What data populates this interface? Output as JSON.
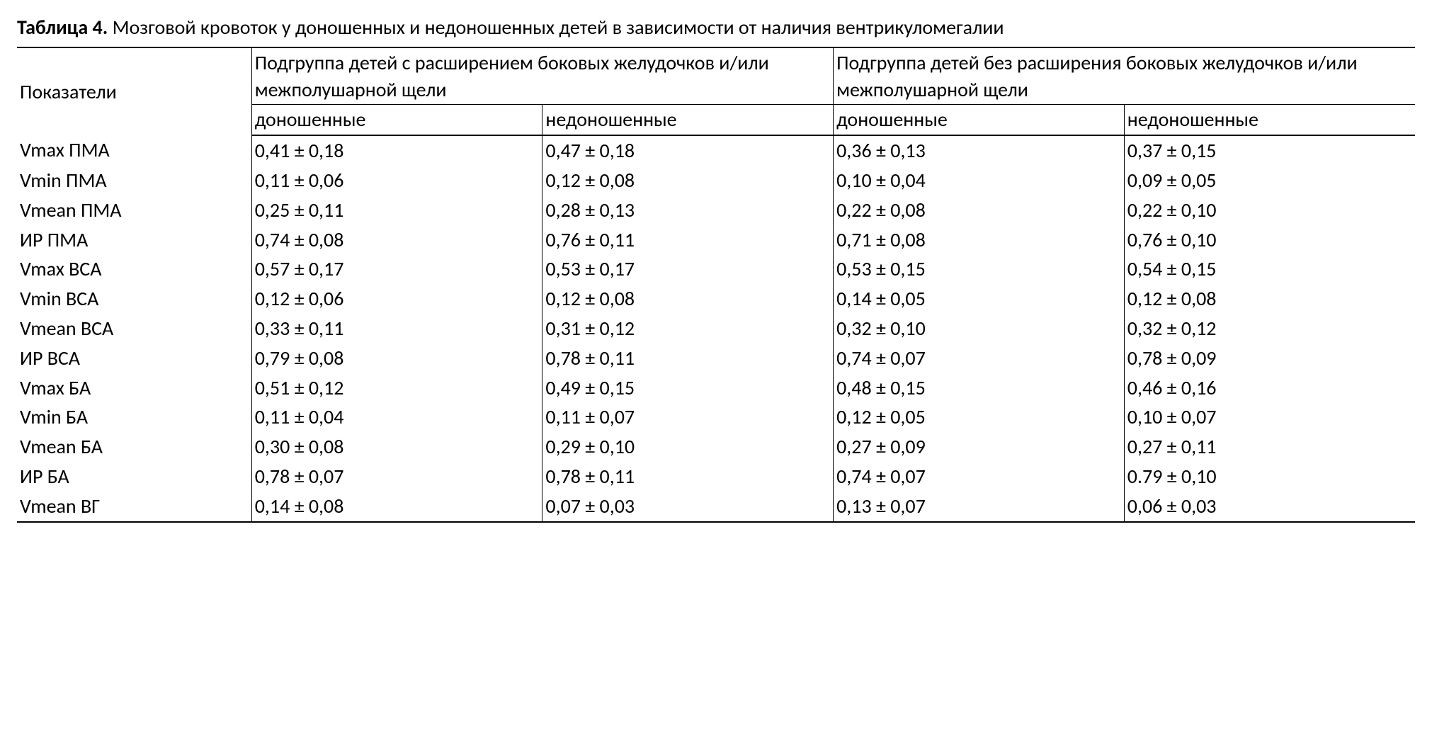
{
  "caption": {
    "label": "Таблица 4.",
    "text": "Мозговой кровоток у доношенных и недоношенных детей в зависимости от наличия вентрикуломегалии"
  },
  "headers": {
    "col0": "Показатели",
    "group1": "Подгруппа детей с расширением боковых желудочков и/или межполушарной щели",
    "group2": "Подгруппа детей без расширения боковых желудочков и/или межполушарной щели",
    "sub_term": "доношенные",
    "sub_preterm": "недоношенные"
  },
  "rows": [
    {
      "p": "Vmax ПМА",
      "a": "0,41 ± 0,18",
      "b": "0,47 ± 0,18",
      "c": "0,36 ± 0,13",
      "d": "0,37 ± 0,15"
    },
    {
      "p": "Vmin ПМА",
      "a": "0,11 ± 0,06",
      "b": "0,12 ± 0,08",
      "c": "0,10 ± 0,04",
      "d": "0,09 ± 0,05"
    },
    {
      "p": "Vmean ПМА",
      "a": "0,25 ± 0,11",
      "b": "0,28 ± 0,13",
      "c": "0,22 ± 0,08",
      "d": "0,22 ± 0,10"
    },
    {
      "p": "ИР ПМА",
      "a": "0,74 ± 0,08",
      "b": "0,76 ± 0,11",
      "c": "0,71 ± 0,08",
      "d": "0,76 ± 0,10"
    },
    {
      "p": "Vmax ВСА",
      "a": "0,57 ± 0,17",
      "b": "0,53 ± 0,17",
      "c": "0,53 ± 0,15",
      "d": "0,54 ± 0,15"
    },
    {
      "p": "Vmin ВСА",
      "a": "0,12 ± 0,06",
      "b": "0,12 ± 0,08",
      "c": "0,14 ± 0,05",
      "d": "0,12 ± 0,08"
    },
    {
      "p": "Vmean ВСА",
      "a": "0,33 ± 0,11",
      "b": "0,31 ± 0,12",
      "c": "0,32 ± 0,10",
      "d": "0,32 ± 0,12"
    },
    {
      "p": "ИР ВСА",
      "a": "0,79 ± 0,08",
      "b": "0,78 ± 0,11",
      "c": "0,74 ± 0,07",
      "d": "0,78 ± 0,09"
    },
    {
      "p": "Vmax БА",
      "a": "0,51 ± 0,12",
      "b": "0,49 ± 0,15",
      "c": "0,48 ± 0,15",
      "d": "0,46 ± 0,16"
    },
    {
      "p": "Vmin БА",
      "a": "0,11 ± 0,04",
      "b": "0,11 ± 0,07",
      "c": "0,12 ± 0,05",
      "d": "0,10 ± 0,07"
    },
    {
      "p": "Vmean БА",
      "a": "0,30 ± 0,08",
      "b": "0,29 ± 0,10",
      "c": "0,27 ± 0,09",
      "d": "0,27 ± 0,11"
    },
    {
      "p": "ИР БА",
      "a": "0,78 ± 0,07",
      "b": "0,78 ± 0,11",
      "c": "0,74 ± 0,07",
      "d": "0.79 ± 0,10"
    },
    {
      "p": "Vmean ВГ",
      "a": "0,14 ± 0,08",
      "b": "0,07 ± 0,03",
      "c": "0,13 ± 0,07",
      "d": "0,06 ± 0,03"
    }
  ]
}
